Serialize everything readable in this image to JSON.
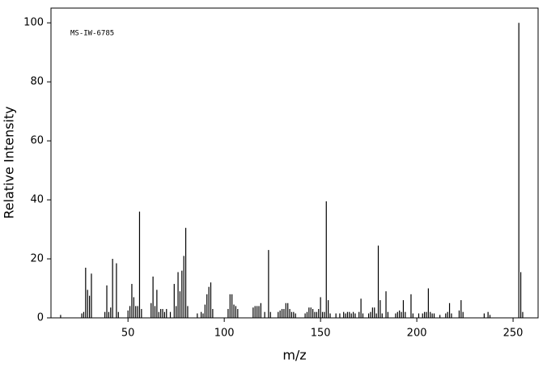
{
  "chart_data": {
    "type": "stem",
    "annotation": "MS-IW-6785",
    "xlabel": "m/z",
    "ylabel": "Relative Intensity",
    "color": "#000000",
    "xlim": [
      10,
      263
    ],
    "ylim": [
      0,
      105
    ],
    "xticks": [
      50,
      100,
      150,
      200,
      250
    ],
    "yticks": [
      0,
      20,
      40,
      60,
      80,
      100
    ],
    "x": [
      15,
      26,
      27,
      28,
      29,
      30,
      31,
      38,
      39,
      40,
      41,
      42,
      44,
      45,
      50,
      51,
      52,
      53,
      54,
      55,
      56,
      57,
      62,
      63,
      64,
      65,
      66,
      67,
      68,
      69,
      70,
      72,
      74,
      75,
      76,
      77,
      78,
      79,
      80,
      81,
      86,
      88,
      89,
      90,
      91,
      92,
      93,
      94,
      102,
      103,
      104,
      105,
      106,
      107,
      115,
      116,
      117,
      118,
      119,
      121,
      123,
      124,
      128,
      129,
      130,
      131,
      132,
      133,
      134,
      135,
      136,
      137,
      142,
      143,
      144,
      145,
      146,
      147,
      148,
      149,
      150,
      151,
      152,
      153,
      154,
      155,
      158,
      160,
      162,
      163,
      164,
      165,
      166,
      167,
      168,
      170,
      171,
      172,
      175,
      176,
      177,
      178,
      179,
      180,
      181,
      182,
      184,
      185,
      189,
      190,
      191,
      192,
      193,
      194,
      197,
      198,
      201,
      203,
      204,
      205,
      206,
      207,
      208,
      209,
      212,
      215,
      216,
      217,
      218,
      222,
      223,
      224,
      235,
      237,
      238,
      253,
      254,
      255
    ],
    "values": [
      1,
      1.5,
      2,
      17,
      9.5,
      7.5,
      15,
      2,
      11,
      2,
      3.5,
      20,
      18.5,
      2,
      2.5,
      4,
      11.5,
      7,
      4,
      4,
      36,
      3,
      5,
      14,
      4,
      9.5,
      2,
      3,
      3,
      2,
      3,
      2,
      11.5,
      4,
      15.5,
      9,
      16,
      21,
      30.5,
      4,
      1.5,
      2,
      1.5,
      4.5,
      8,
      10.5,
      12,
      3,
      3,
      8,
      8,
      4.5,
      4,
      3,
      3.5,
      4,
      4,
      4,
      5,
      2,
      23,
      2,
      2,
      2.5,
      3,
      3,
      5,
      5,
      3,
      2,
      2,
      1.5,
      1.5,
      2,
      3.5,
      3.5,
      3,
      2,
      2,
      3,
      7,
      2,
      2,
      39.5,
      6,
      1.5,
      1.5,
      1.5,
      2,
      1.5,
      2,
      2,
      1.5,
      2,
      1.5,
      2,
      6.5,
      1.5,
      1.5,
      2,
      3.5,
      3.5,
      1.5,
      24.5,
      6,
      1.5,
      9,
      2,
      1.5,
      2,
      2.5,
      2,
      6,
      2,
      8,
      1.5,
      1.5,
      1.5,
      2,
      2,
      10,
      2,
      1.5,
      1.5,
      1,
      1.5,
      2,
      5,
      1.5,
      2.5,
      6,
      2,
      1.5,
      2,
      1,
      100,
      15.5,
      2
    ]
  }
}
